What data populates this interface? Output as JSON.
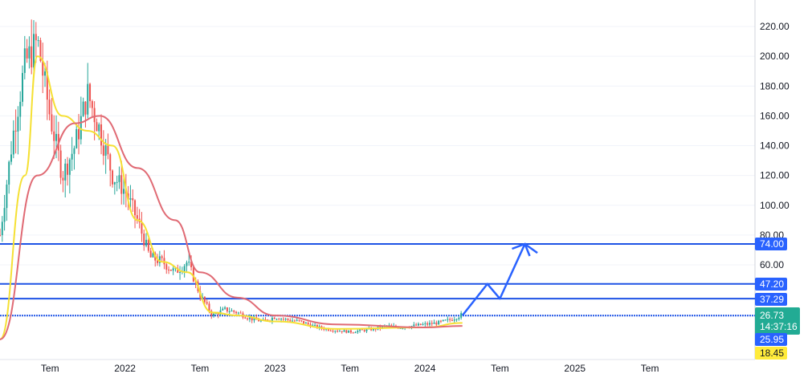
{
  "chart_data": {
    "type": "candlestick",
    "y_axis": {
      "ticks": [
        "220.00",
        "200.00",
        "180.00",
        "160.00",
        "140.00",
        "120.00",
        "100.00",
        "80.00",
        "60.00"
      ]
    },
    "x_axis": {
      "ticks": [
        "Tem",
        "2022",
        "Tem",
        "2023",
        "Tem",
        "2024",
        "Tem",
        "2025",
        "Tem"
      ]
    },
    "ylim": [
      0,
      238
    ],
    "price_labels": [
      {
        "value": "74.00",
        "bg": "#2962ff",
        "fg": "#ffffff"
      },
      {
        "value": "47.20",
        "bg": "#2962ff",
        "fg": "#ffffff"
      },
      {
        "value": "37.29",
        "bg": "#2962ff",
        "fg": "#ffffff"
      },
      {
        "value": "26.73",
        "bg": "#22ab94",
        "fg": "#ffffff",
        "countdown": "14:37:16"
      },
      {
        "value": "25.95",
        "bg": "#2962ff",
        "fg": "#ffffff"
      },
      {
        "value": "18.45",
        "bg": "#ffeb3b",
        "fg": "#131722"
      }
    ],
    "horizontal_levels": [
      74,
      47.2,
      37.29,
      25.95
    ],
    "candles": {
      "x_start": "2021-03",
      "x_end": "2024-04",
      "close_path": [
        [
          "2021-03",
          80
        ],
        [
          "2021-04",
          145
        ],
        [
          "2021-05",
          195
        ],
        [
          "2021-06",
          210
        ],
        [
          "2021-07",
          160
        ],
        [
          "2021-08",
          120
        ],
        [
          "2021-09",
          140
        ],
        [
          "2021-10",
          175
        ],
        [
          "2021-11",
          150
        ],
        [
          "2021-12",
          120
        ],
        [
          "2022-01",
          110
        ],
        [
          "2022-02",
          90
        ],
        [
          "2022-03",
          65
        ],
        [
          "2022-04",
          62
        ],
        [
          "2022-05",
          55
        ],
        [
          "2022-06",
          62
        ],
        [
          "2022-07",
          40
        ],
        [
          "2022-08",
          26
        ],
        [
          "2022-09",
          30
        ],
        [
          "2022-10",
          28
        ],
        [
          "2022-11",
          24
        ],
        [
          "2022-12",
          22
        ],
        [
          "2023-01",
          25
        ],
        [
          "2023-02",
          23
        ],
        [
          "2023-03",
          22
        ],
        [
          "2023-04",
          19
        ],
        [
          "2023-05",
          17
        ],
        [
          "2023-06",
          16
        ],
        [
          "2023-07",
          15
        ],
        [
          "2023-08",
          16
        ],
        [
          "2023-09",
          17
        ],
        [
          "2023-10",
          19
        ],
        [
          "2023-11",
          18
        ],
        [
          "2023-12",
          19
        ],
        [
          "2024-01",
          20
        ],
        [
          "2024-02",
          21
        ],
        [
          "2024-03",
          23
        ],
        [
          "2024-04",
          26.73
        ]
      ]
    },
    "moving_averages": [
      {
        "color": "#f5e033",
        "points": [
          [
            "2021-03",
            10
          ],
          [
            "2021-05",
            120
          ],
          [
            "2021-06",
            200
          ],
          [
            "2021-08",
            160
          ],
          [
            "2021-10",
            150
          ],
          [
            "2021-12",
            140
          ],
          [
            "2022-02",
            90
          ],
          [
            "2022-04",
            62
          ],
          [
            "2022-06",
            55
          ],
          [
            "2022-08",
            28
          ],
          [
            "2022-10",
            26
          ],
          [
            "2023-01",
            22
          ],
          [
            "2023-06",
            17
          ],
          [
            "2024-01",
            18
          ],
          [
            "2024-04",
            21
          ]
        ]
      },
      {
        "color": "#e06a74",
        "points": [
          [
            "2021-03",
            10
          ],
          [
            "2021-06",
            120
          ],
          [
            "2021-09",
            155
          ],
          [
            "2021-11",
            160
          ],
          [
            "2022-02",
            125
          ],
          [
            "2022-05",
            90
          ],
          [
            "2022-07",
            55
          ],
          [
            "2022-10",
            38
          ],
          [
            "2023-01",
            26
          ],
          [
            "2023-06",
            20
          ],
          [
            "2024-01",
            18
          ],
          [
            "2024-04",
            19
          ]
        ]
      }
    ],
    "projection_arrow": {
      "color": "#2962ff",
      "points": [
        [
          "2024-04",
          26
        ],
        [
          "2024-06",
          47.2
        ],
        [
          "2024-07",
          37.29
        ],
        [
          "2024-09",
          74
        ],
        [
          "2024-10",
          68
        ]
      ]
    }
  }
}
